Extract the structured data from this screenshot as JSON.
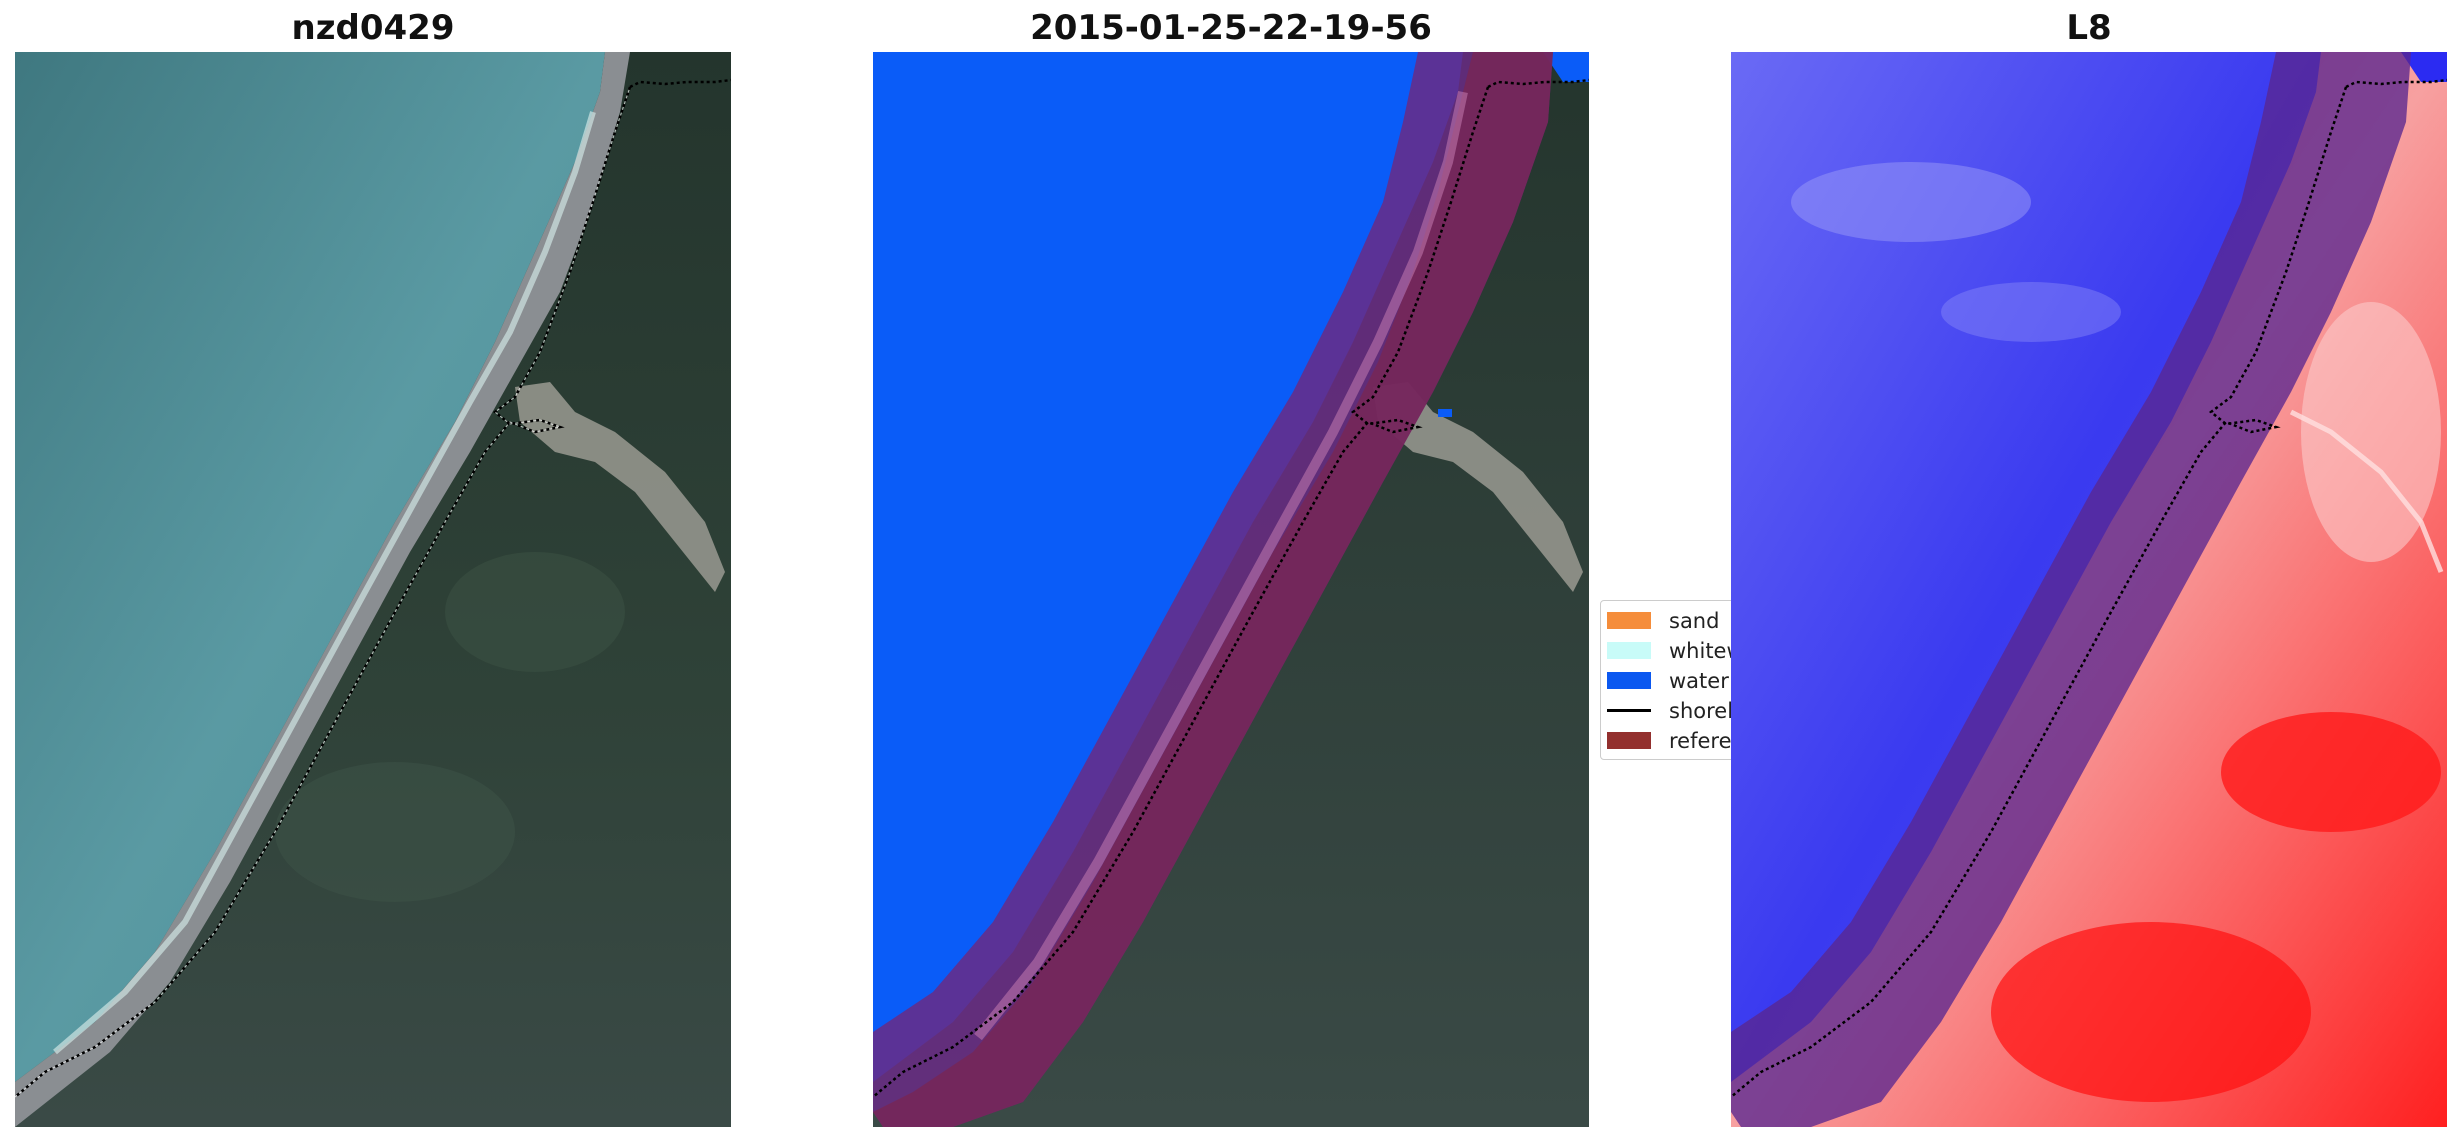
{
  "panels": {
    "left_title": "nzd0429",
    "middle_title": "2015-01-25-22-19-56",
    "right_title": "L8"
  },
  "legend": {
    "items": [
      {
        "label": "sand",
        "color": "#f58d3b"
      },
      {
        "label": "whitew",
        "color": "#c8fbf8"
      },
      {
        "label": "water",
        "color": "#0b58f0"
      },
      {
        "label": "shorel",
        "color": "#000000"
      },
      {
        "label": "referen",
        "color": "#93302e"
      }
    ]
  },
  "colors": {
    "sea": "#4f8c96",
    "land": "#2b3d36",
    "beach": "#8b8f93",
    "water_class": "#0a5cf8",
    "buffer": "#6f2a8a",
    "mndwi_water": "#3c3cf2",
    "mndwi_land": "#f23a3a"
  }
}
